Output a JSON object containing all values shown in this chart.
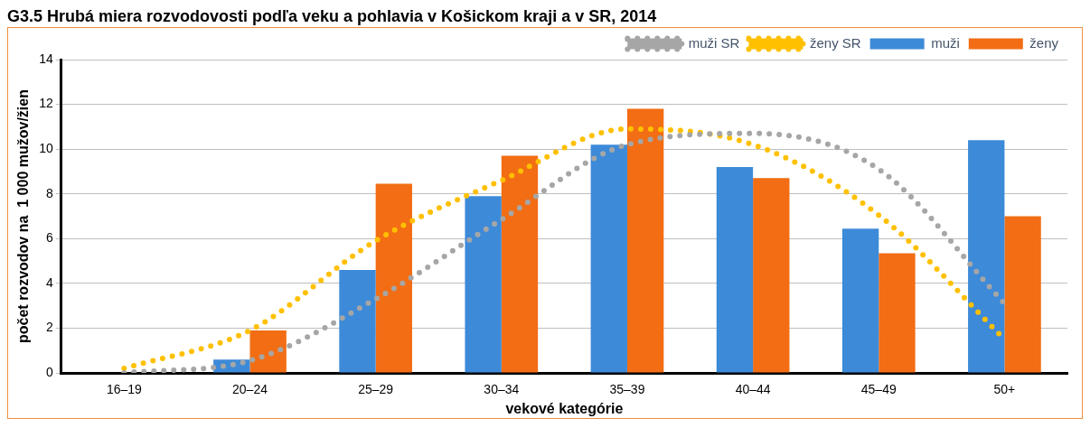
{
  "chart_data": {
    "type": "bar",
    "title": "G3.5 Hrubá miera rozvodovosti podľa veku a pohlavia v Košickom kraji a v SR, 2014",
    "xlabel": "vekové kategórie",
    "ylabel": "počet rozvodov na  1 000 mužov/žien",
    "categories": [
      "16–19",
      "20–24",
      "25–29",
      "30–34",
      "35–39",
      "40–44",
      "45–49",
      "50+"
    ],
    "series": [
      {
        "name": "muži",
        "color": "#3d8ad8",
        "values": [
          null,
          0.6,
          4.6,
          7.9,
          10.2,
          9.2,
          6.45,
          10.4
        ]
      },
      {
        "name": "ženy",
        "color": "#f26d14",
        "values": [
          null,
          1.9,
          8.45,
          9.7,
          11.8,
          8.7,
          5.35,
          7.0
        ]
      },
      {
        "name": "muži SR",
        "type": "line",
        "color": "#a6a6a6",
        "line_style": "dotted",
        "values": [
          0.0,
          0.55,
          3.3,
          6.85,
          10.2,
          10.7,
          9.1,
          3.1
        ]
      },
      {
        "name": "ženy SR",
        "type": "line",
        "color": "#ffc000",
        "line_style": "dotted",
        "values": [
          0.2,
          1.9,
          5.9,
          8.6,
          10.9,
          10.2,
          7.05,
          1.5
        ]
      }
    ],
    "ylim": [
      0,
      14
    ],
    "yticks": [
      0,
      2,
      4,
      6,
      8,
      10,
      12,
      14
    ],
    "grid": "y",
    "legend": "top right"
  }
}
